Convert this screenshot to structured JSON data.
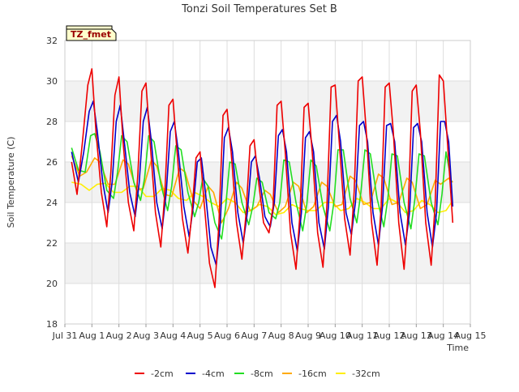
{
  "chart_data": {
    "type": "line",
    "title": "Tonzi Soil Temperatures Set B",
    "xlabel": "Time",
    "ylabel": "Soil Temperature (C)",
    "ylim": [
      18,
      32
    ],
    "xlim": [
      0,
      15
    ],
    "yticks": [
      18,
      20,
      22,
      24,
      26,
      28,
      30,
      32
    ],
    "xticks": [
      {
        "v": 0,
        "label": "Jul 31"
      },
      {
        "v": 1,
        "label": "Aug 1"
      },
      {
        "v": 2,
        "label": "Aug 2"
      },
      {
        "v": 3,
        "label": "Aug 3"
      },
      {
        "v": 4,
        "label": "Aug 4"
      },
      {
        "v": 5,
        "label": "Aug 5"
      },
      {
        "v": 6,
        "label": "Aug 6"
      },
      {
        "v": 7,
        "label": "Aug 7"
      },
      {
        "v": 8,
        "label": "Aug 8"
      },
      {
        "v": 9,
        "label": "Aug 9"
      },
      {
        "v": 10,
        "label": "Aug 10"
      },
      {
        "v": 11,
        "label": "Aug 11"
      },
      {
        "v": 12,
        "label": "Aug 12"
      },
      {
        "v": 13,
        "label": "Aug 13"
      },
      {
        "v": 14,
        "label": "Aug 14"
      },
      {
        "v": 15,
        "label": "Aug 15"
      }
    ],
    "x_unit_note": "x values are days since Jul 31 00:00",
    "grid": true,
    "shaded_bands": [
      [
        20,
        22
      ],
      [
        24,
        26
      ],
      [
        28,
        30
      ]
    ],
    "legend_position": "bottom",
    "annotation_box": "TZ_fmet",
    "series": [
      {
        "name": "-2cm",
        "color": "#ee0000",
        "x": [
          0.25,
          0.45,
          0.65,
          0.85,
          1.0,
          1.15,
          1.35,
          1.55,
          1.7,
          1.85,
          2.0,
          2.15,
          2.35,
          2.55,
          2.7,
          2.85,
          3.0,
          3.15,
          3.35,
          3.55,
          3.7,
          3.85,
          4.0,
          4.15,
          4.35,
          4.55,
          4.7,
          4.85,
          5.0,
          5.15,
          5.35,
          5.55,
          5.7,
          5.85,
          6.0,
          6.15,
          6.35,
          6.55,
          6.7,
          6.85,
          7.0,
          7.15,
          7.35,
          7.55,
          7.7,
          7.85,
          8.0,
          8.15,
          8.35,
          8.55,
          8.7,
          8.85,
          9.0,
          9.15,
          9.35,
          9.55,
          9.7,
          9.85,
          10.0,
          10.15,
          10.35,
          10.55,
          10.7,
          10.85,
          11.0,
          11.15,
          11.35,
          11.55,
          11.7,
          11.85,
          12.0,
          12.15,
          12.35,
          12.55,
          12.7,
          12.85,
          13.0,
          13.15,
          13.35,
          13.55,
          13.7,
          13.85,
          14.0,
          14.15,
          14.35
        ],
        "y": [
          26.0,
          24.4,
          27.0,
          29.8,
          30.6,
          27.5,
          24.5,
          22.8,
          25.5,
          29.3,
          30.2,
          27.0,
          24.0,
          22.6,
          25.4,
          29.5,
          29.9,
          27.0,
          23.5,
          21.8,
          24.5,
          28.8,
          29.1,
          26.5,
          23.2,
          21.5,
          23.5,
          26.2,
          26.5,
          24.0,
          21.0,
          19.8,
          23.0,
          28.3,
          28.6,
          26.5,
          23.0,
          21.2,
          23.4,
          26.8,
          27.1,
          25.2,
          23.0,
          22.5,
          23.8,
          28.8,
          29.0,
          26.5,
          22.5,
          20.7,
          23.5,
          28.7,
          28.9,
          26.5,
          22.5,
          20.8,
          24.0,
          29.7,
          29.8,
          27.0,
          23.2,
          21.4,
          24.5,
          30.0,
          30.2,
          27.5,
          23.0,
          20.9,
          23.8,
          29.7,
          29.9,
          27.5,
          23.0,
          20.7,
          23.5,
          29.5,
          29.8,
          27.5,
          23.0,
          20.9,
          24.0,
          30.3,
          30.0,
          27.0,
          23.0
        ]
      },
      {
        "name": "-4cm",
        "color": "#0000cc",
        "x": [
          0.25,
          0.5,
          0.7,
          0.9,
          1.05,
          1.2,
          1.4,
          1.6,
          1.75,
          1.9,
          2.05,
          2.2,
          2.4,
          2.6,
          2.75,
          2.9,
          3.05,
          3.2,
          3.4,
          3.6,
          3.75,
          3.9,
          4.05,
          4.2,
          4.4,
          4.6,
          4.75,
          4.9,
          5.05,
          5.2,
          5.4,
          5.6,
          5.75,
          5.9,
          6.05,
          6.2,
          6.4,
          6.6,
          6.75,
          6.9,
          7.05,
          7.2,
          7.4,
          7.6,
          7.75,
          7.9,
          8.05,
          8.2,
          8.4,
          8.6,
          8.75,
          8.9,
          9.05,
          9.2,
          9.4,
          9.6,
          9.75,
          9.9,
          10.05,
          10.2,
          10.4,
          10.6,
          10.75,
          10.9,
          11.05,
          11.2,
          11.4,
          11.6,
          11.75,
          11.9,
          12.05,
          12.2,
          12.4,
          12.6,
          12.75,
          12.9,
          13.05,
          13.2,
          13.4,
          13.6,
          13.75,
          13.9,
          14.05,
          14.2,
          14.35
        ],
        "y": [
          26.5,
          25.0,
          26.5,
          28.5,
          29.0,
          27.5,
          25.0,
          23.5,
          25.0,
          28.0,
          28.8,
          27.0,
          24.5,
          23.3,
          25.0,
          28.0,
          28.7,
          27.0,
          24.0,
          22.7,
          24.5,
          27.5,
          28.0,
          26.5,
          23.8,
          22.3,
          23.8,
          26.0,
          26.2,
          24.5,
          21.8,
          20.9,
          23.0,
          27.2,
          27.7,
          26.5,
          23.5,
          22.0,
          23.5,
          26.0,
          26.3,
          25.2,
          23.3,
          22.8,
          24.0,
          27.3,
          27.6,
          26.5,
          23.0,
          21.6,
          23.5,
          27.2,
          27.5,
          26.5,
          23.0,
          21.7,
          23.8,
          28.0,
          28.3,
          27.0,
          23.5,
          22.4,
          24.0,
          27.8,
          28.0,
          27.0,
          23.5,
          21.9,
          23.8,
          27.8,
          27.9,
          27.0,
          23.5,
          21.9,
          23.5,
          27.7,
          27.9,
          27.0,
          23.5,
          21.8,
          23.5,
          28.0,
          28.0,
          27.0,
          23.8
        ]
      },
      {
        "name": "-8cm",
        "color": "#22dd22",
        "x": [
          0.25,
          0.5,
          0.75,
          0.95,
          1.1,
          1.3,
          1.55,
          1.8,
          1.95,
          2.1,
          2.3,
          2.55,
          2.8,
          2.95,
          3.1,
          3.3,
          3.55,
          3.8,
          3.95,
          4.1,
          4.3,
          4.55,
          4.8,
          4.95,
          5.1,
          5.3,
          5.55,
          5.8,
          5.95,
          6.1,
          6.3,
          6.55,
          6.8,
          6.95,
          7.1,
          7.3,
          7.55,
          7.8,
          7.95,
          8.1,
          8.3,
          8.55,
          8.8,
          8.95,
          9.1,
          9.3,
          9.55,
          9.8,
          9.95,
          10.1,
          10.3,
          10.55,
          10.8,
          10.95,
          11.1,
          11.3,
          11.55,
          11.8,
          11.95,
          12.1,
          12.3,
          12.55,
          12.8,
          12.95,
          13.1,
          13.3,
          13.55,
          13.8,
          13.95,
          14.1,
          14.3
        ],
        "y": [
          26.7,
          25.6,
          25.5,
          27.3,
          27.4,
          26.5,
          24.6,
          24.2,
          25.5,
          27.3,
          27.0,
          25.0,
          24.1,
          25.2,
          27.3,
          27.0,
          24.9,
          23.6,
          24.8,
          26.8,
          26.6,
          24.5,
          23.3,
          24.0,
          25.2,
          24.8,
          23.0,
          22.2,
          23.8,
          26.0,
          25.9,
          24.0,
          22.9,
          23.8,
          25.2,
          25.0,
          23.5,
          23.2,
          24.0,
          26.1,
          26.0,
          24.0,
          22.6,
          23.9,
          26.1,
          25.8,
          23.8,
          22.6,
          24.0,
          26.6,
          26.6,
          24.2,
          23.0,
          24.5,
          26.6,
          26.4,
          24.2,
          22.8,
          24.2,
          26.4,
          26.3,
          24.0,
          22.7,
          24.2,
          26.4,
          26.3,
          24.0,
          22.9,
          24.4,
          26.5,
          25.0
        ]
      },
      {
        "name": "-16cm",
        "color": "#ffaa00",
        "x": [
          0.25,
          0.55,
          0.8,
          1.1,
          1.3,
          1.6,
          1.85,
          2.15,
          2.35,
          2.65,
          2.9,
          3.2,
          3.4,
          3.7,
          3.95,
          4.25,
          4.45,
          4.75,
          5.0,
          5.3,
          5.5,
          5.8,
          6.05,
          6.35,
          6.55,
          6.85,
          7.1,
          7.4,
          7.6,
          7.9,
          8.15,
          8.45,
          8.65,
          8.95,
          9.2,
          9.5,
          9.7,
          10.0,
          10.25,
          10.55,
          10.75,
          11.05,
          11.3,
          11.6,
          11.8,
          12.1,
          12.35,
          12.65,
          12.85,
          13.15,
          13.4,
          13.7,
          13.9,
          14.2,
          14.35
        ],
        "y": [
          26.3,
          25.3,
          25.5,
          26.2,
          26.0,
          24.9,
          24.9,
          26.1,
          25.9,
          24.6,
          24.7,
          26.1,
          25.8,
          24.4,
          24.3,
          25.7,
          25.5,
          24.1,
          23.7,
          24.8,
          24.5,
          23.0,
          23.7,
          25.0,
          24.7,
          23.6,
          23.8,
          24.6,
          24.4,
          23.5,
          23.8,
          25.0,
          24.8,
          23.5,
          23.8,
          25.0,
          24.8,
          23.8,
          23.9,
          25.3,
          25.1,
          23.9,
          24.0,
          25.4,
          25.2,
          23.9,
          24.0,
          25.2,
          25.0,
          23.7,
          23.9,
          25.1,
          24.9,
          25.2,
          25.0
        ]
      },
      {
        "name": "-32cm",
        "color": "#ffee00",
        "x": [
          0.25,
          0.6,
          0.9,
          1.2,
          1.5,
          1.8,
          2.1,
          2.4,
          2.7,
          3.0,
          3.3,
          3.6,
          3.9,
          4.2,
          4.5,
          4.8,
          5.1,
          5.4,
          5.7,
          6.0,
          6.3,
          6.6,
          6.9,
          7.2,
          7.5,
          7.8,
          8.1,
          8.4,
          8.7,
          9.0,
          9.3,
          9.6,
          9.9,
          10.2,
          10.5,
          10.8,
          11.1,
          11.4,
          11.7,
          12.0,
          12.3,
          12.6,
          12.9,
          13.2,
          13.5,
          13.8,
          14.1,
          14.35
        ],
        "y": [
          25.0,
          24.9,
          24.6,
          24.9,
          24.95,
          24.5,
          24.5,
          24.8,
          24.8,
          24.3,
          24.3,
          24.7,
          24.6,
          24.2,
          24.1,
          24.5,
          24.3,
          24.0,
          23.8,
          24.2,
          24.0,
          23.5,
          23.6,
          23.9,
          23.8,
          23.4,
          23.5,
          23.9,
          23.7,
          23.6,
          23.6,
          24.0,
          24.0,
          23.6,
          23.7,
          24.2,
          24.0,
          23.7,
          23.7,
          24.2,
          24.0,
          23.5,
          23.6,
          24.1,
          23.9,
          23.5,
          23.6,
          24.1
        ]
      }
    ]
  }
}
